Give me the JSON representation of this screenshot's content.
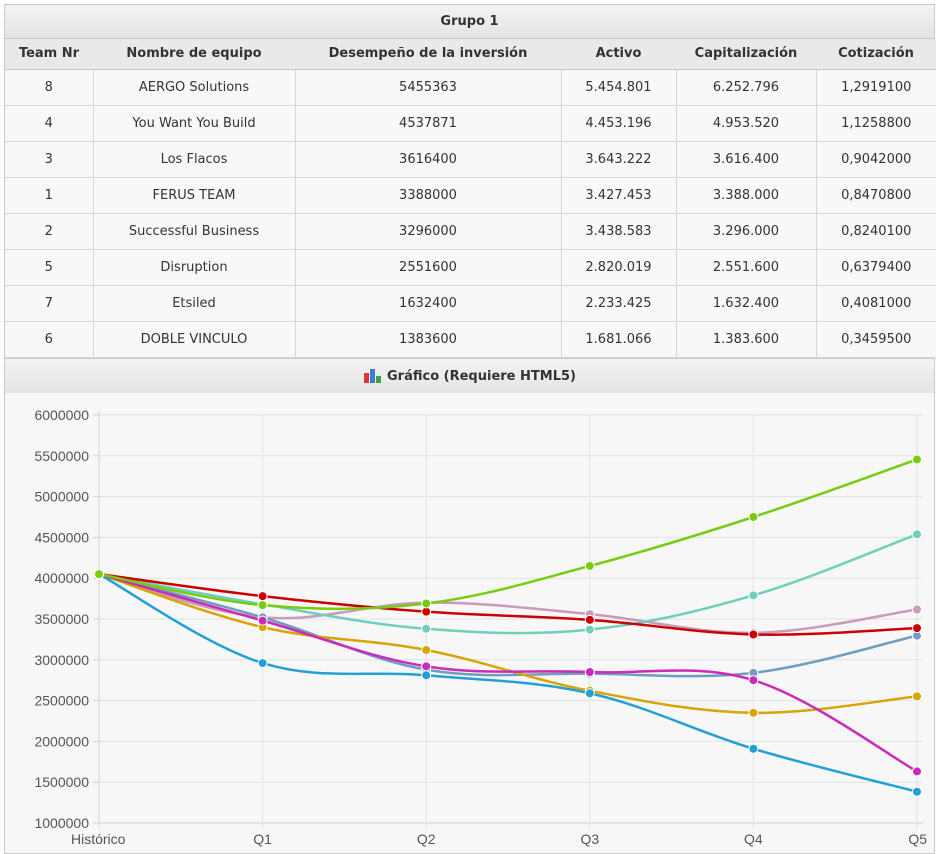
{
  "group": {
    "title": "Grupo 1"
  },
  "table": {
    "columns": [
      "Team Nr",
      "Nombre de equipo",
      "Desempeño de la inversión",
      "Activo",
      "Capitalización",
      "Cotización"
    ],
    "rows": [
      [
        "8",
        "AERGO Solutions",
        "5455363",
        "5.454.801",
        "6.252.796",
        "1,2919100"
      ],
      [
        "4",
        "You Want You Build",
        "4537871",
        "4.453.196",
        "4.953.520",
        "1,1258800"
      ],
      [
        "3",
        "Los Flacos",
        "3616400",
        "3.643.222",
        "3.616.400",
        "0,9042000"
      ],
      [
        "1",
        "FERUS TEAM",
        "3388000",
        "3.427.453",
        "3.388.000",
        "0,8470800"
      ],
      [
        "2",
        "Successful Business",
        "3296000",
        "3.438.583",
        "3.296.000",
        "0,8240100"
      ],
      [
        "5",
        "Disruption",
        "2551600",
        "2.820.019",
        "2.551.600",
        "0,6379400"
      ],
      [
        "7",
        "Etsiled",
        "1632400",
        "2.233.425",
        "1.632.400",
        "0,4081000"
      ],
      [
        "6",
        "DOBLE VINCULO",
        "1383600",
        "1.681.066",
        "1.383.600",
        "0,3459500"
      ]
    ]
  },
  "chart_section": {
    "title": "Gráfico (Requiere HTML5)",
    "icon": "bar-chart-icon"
  },
  "chart_data": {
    "type": "line",
    "title": "",
    "xlabel": "",
    "ylabel": "",
    "categories": [
      "Histórico",
      "Q1",
      "Q2",
      "Q3",
      "Q4",
      "Q5"
    ],
    "ylim": [
      1000000,
      6000000
    ],
    "yticks": [
      1000000,
      1500000,
      2000000,
      2500000,
      3000000,
      3500000,
      4000000,
      4500000,
      5000000,
      5500000,
      6000000
    ],
    "grid": true,
    "legend": "none",
    "series": [
      {
        "color": "#c99aba",
        "values": [
          4050000,
          3520000,
          3700000,
          3560000,
          3330000,
          3616400
        ]
      },
      {
        "color": "#6e9dc0",
        "values": [
          4050000,
          3520000,
          2880000,
          2830000,
          2840000,
          3296000
        ]
      },
      {
        "color": "#d8a400",
        "values": [
          4050000,
          3400000,
          3120000,
          2620000,
          2350000,
          2551600
        ]
      },
      {
        "color": "#6fcfbd",
        "values": [
          4050000,
          3680000,
          3380000,
          3370000,
          3790000,
          4537871
        ]
      },
      {
        "color": "#cc2ab8",
        "values": [
          4050000,
          3480000,
          2920000,
          2850000,
          2750000,
          1632400
        ]
      },
      {
        "color": "#22a0d6",
        "values": [
          4050000,
          2960000,
          2810000,
          2590000,
          1910000,
          1383600
        ]
      },
      {
        "color": "#cc0000",
        "values": [
          4050000,
          3780000,
          3590000,
          3490000,
          3310000,
          3388000
        ]
      },
      {
        "color": "#78cc10",
        "values": [
          4050000,
          3670000,
          3690000,
          4150000,
          4750000,
          5455363
        ]
      }
    ]
  }
}
